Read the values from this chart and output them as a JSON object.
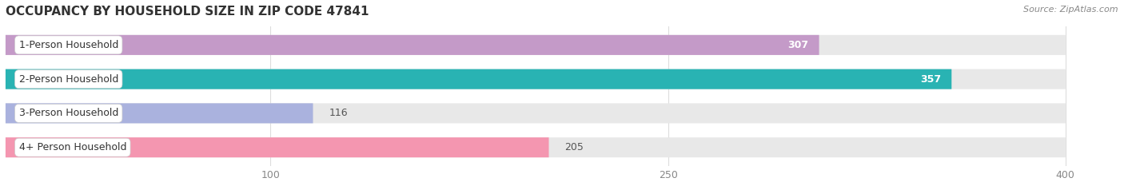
{
  "title": "OCCUPANCY BY HOUSEHOLD SIZE IN ZIP CODE 47841",
  "source": "Source: ZipAtlas.com",
  "categories": [
    "1-Person Household",
    "2-Person Household",
    "3-Person Household",
    "4+ Person Household"
  ],
  "values": [
    307,
    357,
    116,
    205
  ],
  "bar_colors": [
    "#c49ac8",
    "#29b3b3",
    "#aab2de",
    "#f496b0"
  ],
  "xlim_max": 420,
  "data_max": 400,
  "xticks": [
    100,
    250,
    400
  ],
  "label_colors": [
    "white",
    "white",
    "dark",
    "dark"
  ],
  "background_color": "#ffffff",
  "track_color": "#e8e8e8",
  "figsize": [
    14.06,
    2.33
  ],
  "dpi": 100
}
